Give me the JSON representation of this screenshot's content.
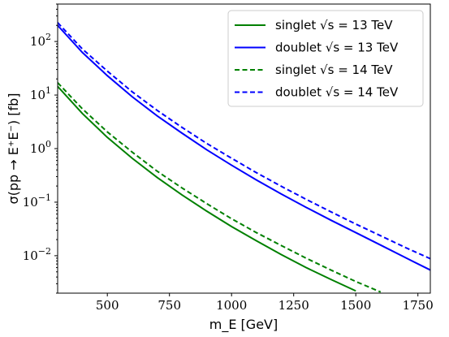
{
  "chart_data": {
    "type": "line",
    "title": "",
    "xlabel": "m_E [GeV]",
    "ylabel": "σ(pp → E⁺E⁻) [fb]",
    "xlim": [
      300,
      1800
    ],
    "ylim": [
      0.002,
      500
    ],
    "yscale": "log",
    "grid": false,
    "legend_position": "top-right",
    "x_ticks": [
      500,
      750,
      1000,
      1250,
      1500,
      1750
    ],
    "x_tick_labels": [
      "500",
      "750",
      "1000",
      "1250",
      "1500",
      "1750"
    ],
    "y_ticks": [
      0.01,
      0.1,
      1,
      10,
      100
    ],
    "y_tick_labels": [
      {
        "base": "10",
        "exp": "−2"
      },
      {
        "base": "10",
        "exp": "−1"
      },
      {
        "base": "10",
        "exp": "0"
      },
      {
        "base": "10",
        "exp": "1"
      },
      {
        "base": "10",
        "exp": "2"
      }
    ],
    "series": [
      {
        "name": "singlet √s = 13 TeV",
        "color": "#008000",
        "dash": "solid",
        "x": [
          300,
          400,
          500,
          600,
          700,
          800,
          900,
          1000,
          1100,
          1200,
          1300,
          1400,
          1500
        ],
        "y": [
          14.5,
          4.5,
          1.62,
          0.66,
          0.29,
          0.137,
          0.068,
          0.035,
          0.019,
          0.0105,
          0.006,
          0.0036,
          0.0022
        ]
      },
      {
        "name": "doublet √s = 13 TeV",
        "color": "#0000ff",
        "dash": "solid",
        "x": [
          300,
          400,
          500,
          600,
          700,
          800,
          900,
          1000,
          1100,
          1200,
          1300,
          1400,
          1500,
          1600,
          1700,
          1800
        ],
        "y": [
          200,
          62,
          23,
          9.3,
          4.1,
          1.95,
          0.95,
          0.49,
          0.26,
          0.142,
          0.08,
          0.046,
          0.027,
          0.0158,
          0.0092,
          0.0054
        ]
      },
      {
        "name": "singlet √s = 14 TeV",
        "color": "#008000",
        "dash": "dashed",
        "x": [
          300,
          400,
          500,
          600,
          700,
          800,
          900,
          1000,
          1100,
          1200,
          1300,
          1400,
          1500,
          1600
        ],
        "y": [
          17,
          5.5,
          2.05,
          0.86,
          0.38,
          0.185,
          0.094,
          0.049,
          0.027,
          0.0155,
          0.009,
          0.0054,
          0.0033,
          0.0021
        ]
      },
      {
        "name": "doublet √s = 14 TeV",
        "color": "#0000ff",
        "dash": "dashed",
        "x": [
          300,
          400,
          500,
          600,
          700,
          800,
          900,
          1000,
          1100,
          1200,
          1300,
          1400,
          1500,
          1600,
          1700,
          1800
        ],
        "y": [
          225,
          72,
          28,
          11.5,
          5.2,
          2.5,
          1.25,
          0.66,
          0.355,
          0.198,
          0.113,
          0.066,
          0.039,
          0.0236,
          0.0142,
          0.0088
        ]
      }
    ]
  }
}
